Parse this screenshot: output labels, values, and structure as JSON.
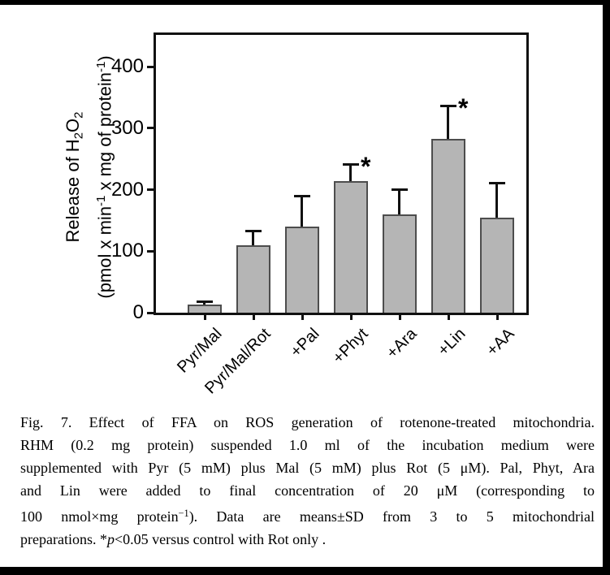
{
  "figure": {
    "label": "Fig. 7.",
    "caption_lines": [
      {
        "segments": [
          {
            "t": "Fig. 7. Effect of FFA on ROS generation of rotenone-treated mitochondria."
          }
        ]
      },
      {
        "segments": [
          {
            "t": "RHM (0.2 mg protein) suspended 1.0 ml of the incubation medium were"
          }
        ]
      },
      {
        "segments": [
          {
            "t": "supplemented with Pyr (5 mM) plus Mal (5 mM) plus Rot (5 μM). Pal, Phyt, Ara"
          }
        ]
      },
      {
        "segments": [
          {
            "t": "and Lin were added to final concentration of 20 μM (corresponding to"
          }
        ]
      },
      {
        "segments": [
          {
            "t": "100 nmol×mg protein"
          },
          {
            "t": "−1",
            "s": "sup"
          },
          {
            "t": "). Data are means±SD from 3 to 5 mitochondrial"
          }
        ]
      },
      {
        "segments": [
          {
            "t": "preparations. *"
          },
          {
            "t": "p",
            "s": "i"
          },
          {
            "t": "<0.05 versus control with Rot only ."
          }
        ]
      }
    ]
  },
  "chart_data": {
    "type": "bar",
    "categories": [
      "Pyr/Mal",
      "Pyr/Mal/Rot",
      "+Pal",
      "+Phyt",
      "+Ara",
      "+Lin",
      "+AA"
    ],
    "values": [
      13,
      110,
      140,
      214,
      160,
      283,
      154
    ],
    "sd_upper": [
      5,
      23,
      50,
      28,
      41,
      54,
      57
    ],
    "significant": [
      false,
      false,
      false,
      true,
      false,
      true,
      false
    ],
    "significance_marker": "*",
    "title": "",
    "xlabel": "",
    "ylabel_line1_segments": [
      {
        "t": "Release of H"
      },
      {
        "t": "2",
        "s": "sub"
      },
      {
        "t": "O"
      },
      {
        "t": "2",
        "s": "sub"
      }
    ],
    "ylabel_line2_segments": [
      {
        "t": "(pmol x min"
      },
      {
        "t": "-1",
        "s": "sup"
      },
      {
        "t": " x mg of protein"
      },
      {
        "t": "-1",
        "s": "sup"
      },
      {
        "t": ")"
      }
    ],
    "yticks": [
      0,
      100,
      200,
      300,
      400
    ],
    "ylim": [
      0,
      452
    ],
    "grid": false,
    "legend": "none",
    "error_bars": "upper SD with caps"
  },
  "colors": {
    "bar_fill": "#b5b5b5",
    "bar_border": "#4d4d4d",
    "axis": "#111111",
    "text": "#000000",
    "page_border": "#000000",
    "background": "#ffffff"
  }
}
